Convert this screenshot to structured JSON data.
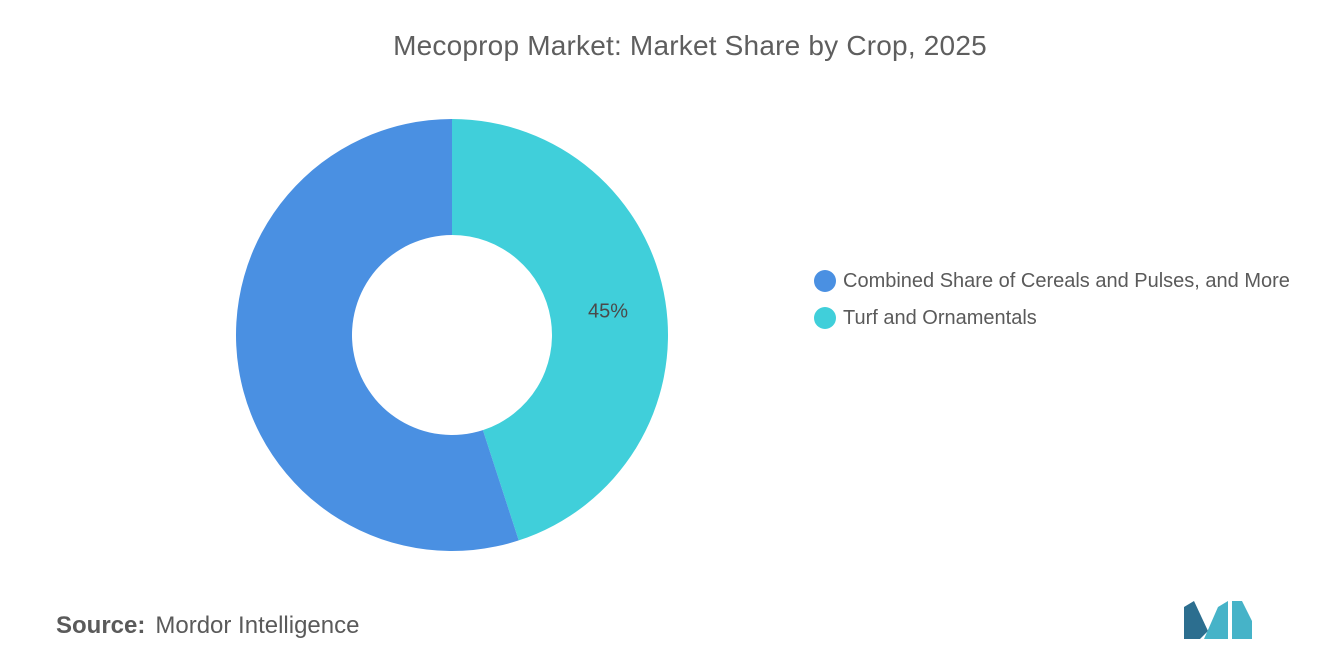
{
  "chart_data": {
    "type": "pie",
    "title": "Mecoprop Market: Market Share by Crop, 2025",
    "categories": [
      "Combined Share of Cereals and Pulses, and More",
      "Turf and Ornamentals"
    ],
    "values": [
      55,
      45
    ],
    "data_labels": [
      "",
      "45%"
    ],
    "colors": [
      "#4a90e2",
      "#40cfda"
    ],
    "donut": true,
    "legend_position": "right"
  },
  "source": {
    "label": "Source:",
    "value": "Mordor Intelligence"
  },
  "logo": {
    "icon": "mordor-intelligence-logo-icon",
    "colors": [
      "#2c6e8f",
      "#46b3c8"
    ]
  }
}
